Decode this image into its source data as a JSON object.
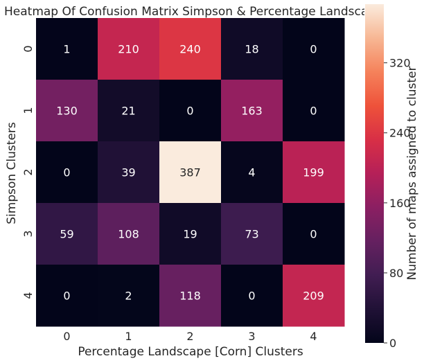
{
  "chart_data": {
    "type": "heatmap",
    "title": "Heatmap Of Confusion Matrix Simpson & Percentage Landscape [Corn] Clusters",
    "xlabel": "Percentage Landscape [Corn] Clusters",
    "ylabel": "Simpson Clusters",
    "x_categories": [
      "0",
      "1",
      "2",
      "3",
      "4"
    ],
    "y_categories": [
      "0",
      "1",
      "2",
      "3",
      "4"
    ],
    "values": [
      [
        1,
        210,
        240,
        18,
        0
      ],
      [
        130,
        21,
        0,
        163,
        0
      ],
      [
        0,
        39,
        387,
        4,
        199
      ],
      [
        59,
        108,
        19,
        73,
        0
      ],
      [
        0,
        2,
        118,
        0,
        209
      ]
    ],
    "colorbar": {
      "label": "Number of maps assigned to cluster",
      "ticks": [
        "0",
        "80",
        "160",
        "240",
        "320"
      ],
      "range": [
        0,
        387
      ],
      "colormap": "rocket"
    }
  }
}
